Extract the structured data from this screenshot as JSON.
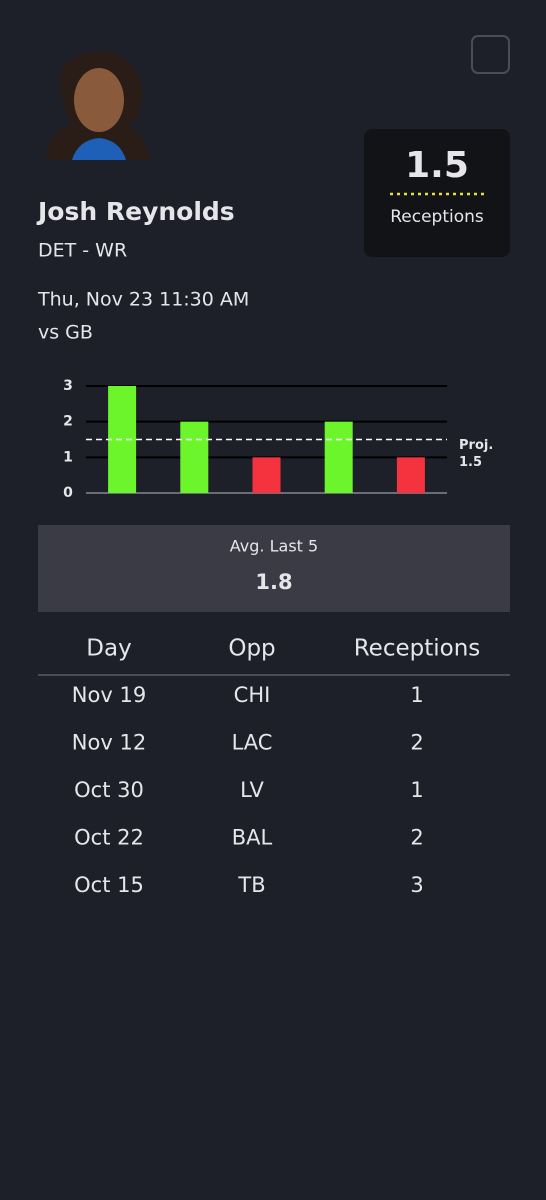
{
  "header": {
    "player": "Josh Reynolds",
    "team_position": "DET - WR",
    "game_time": "Thu, Nov 23 11:30 AM",
    "opponent": "vs GB"
  },
  "projection_box": {
    "value": 1.5,
    "stat": "Receptions"
  },
  "chart_data": {
    "type": "bar",
    "categories": [
      null,
      null,
      null,
      null,
      null
    ],
    "values": [
      3,
      2,
      1,
      2,
      1
    ],
    "colors": [
      "#6cf52b",
      "#6cf52b",
      "#f4333f",
      "#6cf52b",
      "#f4333f"
    ],
    "ylim": [
      0,
      3
    ],
    "yticks": [
      0,
      1,
      2,
      3
    ],
    "grid": true,
    "projection": 1.5,
    "projection_label": "Proj."
  },
  "average": {
    "label": "Avg. Last 5",
    "value": 1.8
  },
  "table": {
    "columns": [
      "Day",
      "Opp",
      "Receptions"
    ],
    "rows": [
      [
        "Nov 19",
        "CHI",
        1
      ],
      [
        "Nov 12",
        "LAC",
        2
      ],
      [
        "Oct 30",
        "LV",
        1
      ],
      [
        "Oct 22",
        "BAL",
        2
      ],
      [
        "Oct 15",
        "TB",
        3
      ]
    ]
  }
}
